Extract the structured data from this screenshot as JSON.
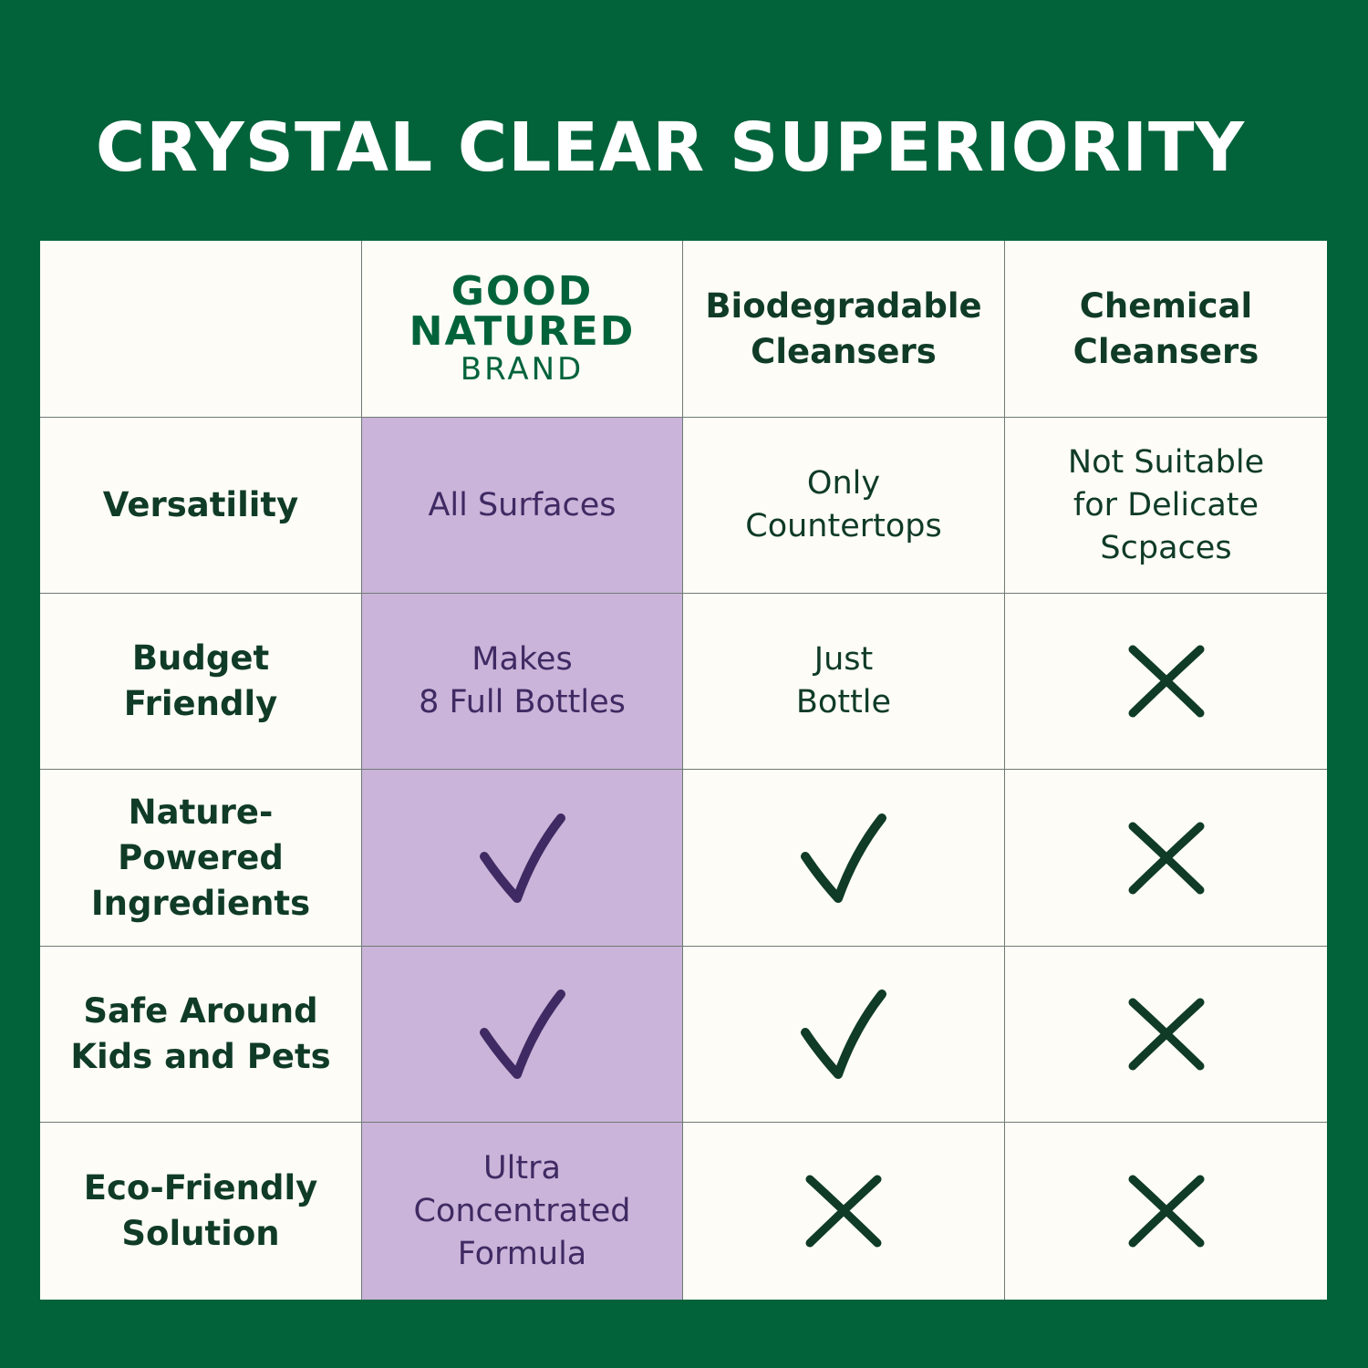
{
  "title": "CRYSTAL CLEAR SUPERIORITY",
  "colors": {
    "background": "#02633b",
    "table": "#fdfcf6",
    "brand_column": "#cab4d9",
    "dark_green_text": "#0f3b27",
    "purple_text": "#3f2a63"
  },
  "header": {
    "brand_logo": {
      "line1": "GOOD",
      "line2": "NATURED",
      "line3": "BRAND"
    },
    "col2": "Biodegradable\nCleansers",
    "col3": "Chemical\nCleansers"
  },
  "rows": [
    {
      "label": "Versatility",
      "brand": "All Surfaces",
      "biodegradable": "Only\nCountertops",
      "chemical": "Not Suitable\nfor Delicate\nScpaces"
    },
    {
      "label": "Budget\nFriendly",
      "brand": "Makes\n8 Full Bottles",
      "biodegradable": "Just\nBottle",
      "chemical_icon": "x-icon"
    },
    {
      "label": "Nature-\nPowered\nIngredients",
      "brand_icon": "check-icon",
      "biodegradable_icon": "check-icon",
      "chemical_icon": "x-icon"
    },
    {
      "label": "Safe Around\nKids and Pets",
      "brand_icon": "check-icon",
      "biodegradable_icon": "check-icon",
      "chemical_icon": "x-icon"
    },
    {
      "label": "Eco-Friendly\nSolution",
      "brand": "Ultra\nConcentrated\nFormula",
      "biodegradable_icon": "x-icon",
      "chemical_icon": "x-icon"
    }
  ]
}
